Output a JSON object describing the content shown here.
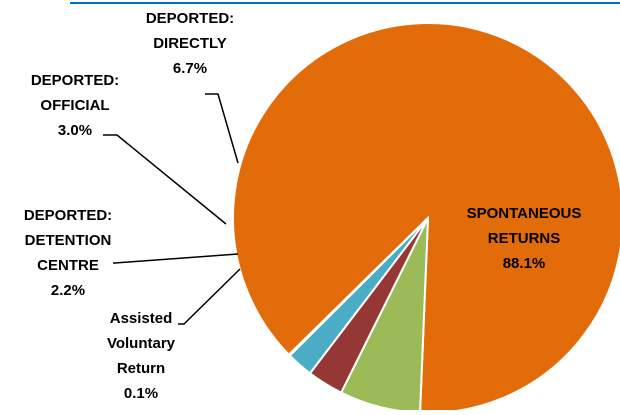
{
  "chart_data": {
    "type": "pie",
    "title": "",
    "slices": [
      {
        "label_lines": [
          "SPONTANEOUS",
          "RETURNS"
        ],
        "pct_label": "88.1%",
        "value": 88.1,
        "color": "#E36C0A"
      },
      {
        "label_lines": [
          "DEPORTED:",
          "DIRECTLY"
        ],
        "pct_label": "6.7%",
        "value": 6.7,
        "color": "#9BBB59"
      },
      {
        "label_lines": [
          "DEPORTED:",
          "OFFICIAL"
        ],
        "pct_label": "3.0%",
        "value": 3.0,
        "color": "#953735"
      },
      {
        "label_lines": [
          "DEPORTED:",
          "DETENTION",
          "CENTRE"
        ],
        "pct_label": "2.2%",
        "value": 2.2,
        "color": "#4BACC6"
      },
      {
        "label_lines": [
          "Assisted",
          "Voluntary",
          "Return"
        ],
        "pct_label": "0.1%",
        "value": 0.1,
        "color": "#EEECE1"
      }
    ],
    "colors": {
      "top_rule": "#0070C0",
      "leader_line": "#000000",
      "slice_border": "#FFFFFF"
    }
  }
}
